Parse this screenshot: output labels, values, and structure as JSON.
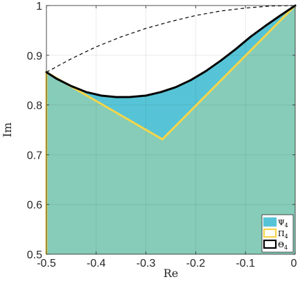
{
  "chart_data": {
    "type": "area",
    "xlabel": "Re",
    "ylabel": "Im",
    "xlim": [
      -0.5,
      0
    ],
    "ylim": [
      0.5,
      1
    ],
    "grid": true,
    "legend_position": "bottom-right",
    "x_ticks": [
      {
        "value": -0.5,
        "label": "-0.5"
      },
      {
        "value": -0.4,
        "label": "-0.4"
      },
      {
        "value": -0.3,
        "label": "-0.3"
      },
      {
        "value": -0.2,
        "label": "-0.2"
      },
      {
        "value": -0.1,
        "label": "-0.1"
      },
      {
        "value": 0,
        "label": "0"
      }
    ],
    "y_ticks": [
      {
        "value": 0.5,
        "label": "0.5"
      },
      {
        "value": 0.6,
        "label": "0.6"
      },
      {
        "value": 0.7,
        "label": "0.7"
      },
      {
        "value": 0.8,
        "label": "0.8"
      },
      {
        "value": 0.9,
        "label": "0.9"
      },
      {
        "value": 1,
        "label": "1"
      }
    ],
    "series": [
      {
        "name": "Ψ4",
        "kind": "filled-region",
        "color": "#56c4d6",
        "points": [
          [
            -0.5,
            0.866
          ],
          [
            -0.48,
            0.853
          ],
          [
            -0.45,
            0.838
          ],
          [
            -0.42,
            0.826
          ],
          [
            -0.39,
            0.819
          ],
          [
            -0.36,
            0.816
          ],
          [
            -0.333,
            0.816
          ],
          [
            -0.3,
            0.819
          ],
          [
            -0.27,
            0.826
          ],
          [
            -0.24,
            0.836
          ],
          [
            -0.21,
            0.85
          ],
          [
            -0.18,
            0.868
          ],
          [
            -0.15,
            0.889
          ],
          [
            -0.12,
            0.912
          ],
          [
            -0.09,
            0.937
          ],
          [
            -0.06,
            0.959
          ],
          [
            -0.03,
            0.98
          ],
          [
            0,
            1
          ],
          [
            -0.267,
            0.731
          ],
          [
            -0.5,
            0.866
          ]
        ]
      },
      {
        "name": "Π4",
        "kind": "filled-polygon",
        "fill": "#86ccb8",
        "edge": "#f5d54a",
        "points": [
          [
            -0.5,
            0.5
          ],
          [
            -0.5,
            0.866
          ],
          [
            -0.267,
            0.731
          ],
          [
            0,
            1
          ],
          [
            0,
            0.5
          ]
        ]
      },
      {
        "name": "Θ4",
        "kind": "boundary-curve",
        "color": "#000000",
        "points": [
          [
            -0.5,
            0.866
          ],
          [
            -0.48,
            0.853
          ],
          [
            -0.45,
            0.838
          ],
          [
            -0.42,
            0.826
          ],
          [
            -0.39,
            0.819
          ],
          [
            -0.36,
            0.816
          ],
          [
            -0.333,
            0.816
          ],
          [
            -0.3,
            0.819
          ],
          [
            -0.27,
            0.826
          ],
          [
            -0.24,
            0.836
          ],
          [
            -0.21,
            0.85
          ],
          [
            -0.18,
            0.868
          ],
          [
            -0.15,
            0.889
          ],
          [
            -0.12,
            0.912
          ],
          [
            -0.09,
            0.937
          ],
          [
            -0.06,
            0.959
          ],
          [
            -0.03,
            0.98
          ],
          [
            0,
            1
          ]
        ]
      },
      {
        "kind": "dashed-arc",
        "color": "#000000",
        "points": [
          [
            -0.5,
            0.866
          ],
          [
            -0.45,
            0.893
          ],
          [
            -0.4,
            0.917
          ],
          [
            -0.35,
            0.937
          ],
          [
            -0.3,
            0.954
          ],
          [
            -0.25,
            0.968
          ],
          [
            -0.2,
            0.98
          ],
          [
            -0.15,
            0.989
          ],
          [
            -0.1,
            0.995
          ],
          [
            -0.05,
            0.999
          ],
          [
            0,
            1
          ]
        ]
      }
    ],
    "legend": [
      {
        "label": "Ψ4",
        "base": "Ψ",
        "sub": "4",
        "fill": "#56c4d6",
        "edge": "#56c4d6"
      },
      {
        "label": "Π4",
        "base": "Π",
        "sub": "4",
        "fill": "#ffffff",
        "edge": "#f5d54a"
      },
      {
        "label": "Θ4",
        "base": "Θ",
        "sub": "4",
        "fill": "#ffffff",
        "edge": "#000000"
      }
    ]
  }
}
